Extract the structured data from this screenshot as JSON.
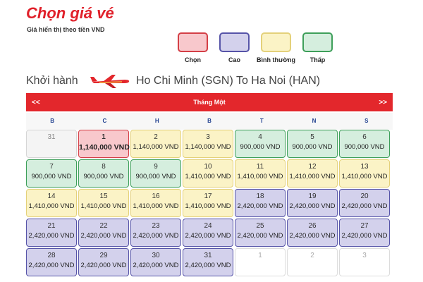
{
  "header": {
    "title": "Chọn giá vé",
    "subtitle": "Giá hiển thị theo tiền VND"
  },
  "legend": [
    {
      "label": "Chọn",
      "type": "selected"
    },
    {
      "label": "Cao",
      "type": "high"
    },
    {
      "label": "Bình thường",
      "type": "normal"
    },
    {
      "label": "Thấp",
      "type": "low"
    }
  ],
  "route": {
    "label": "Khởi hành",
    "text": "Ho Chi Minh (SGN) To Ha Noi (HAN)",
    "icon": "airplane-icon"
  },
  "calendar": {
    "prev": "<<",
    "next": ">>",
    "month": "Tháng Một",
    "weekdays": [
      "B",
      "C",
      "H",
      "B",
      "T",
      "N",
      "S"
    ],
    "cells": [
      {
        "day": "31",
        "price": "",
        "type": "muted"
      },
      {
        "day": "1",
        "price": "1,140,000 VND",
        "type": "selected"
      },
      {
        "day": "2",
        "price": "1,140,000 VND",
        "type": "normal"
      },
      {
        "day": "3",
        "price": "1,140,000 VND",
        "type": "normal"
      },
      {
        "day": "4",
        "price": "900,000 VND",
        "type": "low"
      },
      {
        "day": "5",
        "price": "900,000 VND",
        "type": "low"
      },
      {
        "day": "6",
        "price": "900,000 VND",
        "type": "low"
      },
      {
        "day": "7",
        "price": "900,000 VND",
        "type": "low"
      },
      {
        "day": "8",
        "price": "900,000 VND",
        "type": "low"
      },
      {
        "day": "9",
        "price": "900,000 VND",
        "type": "low"
      },
      {
        "day": "10",
        "price": "1,410,000 VND",
        "type": "normal"
      },
      {
        "day": "11",
        "price": "1,410,000 VND",
        "type": "normal"
      },
      {
        "day": "12",
        "price": "1,410,000 VND",
        "type": "normal"
      },
      {
        "day": "13",
        "price": "1,410,000 VND",
        "type": "normal"
      },
      {
        "day": "14",
        "price": "1,410,000 VND",
        "type": "normal"
      },
      {
        "day": "15",
        "price": "1,410,000 VND",
        "type": "normal"
      },
      {
        "day": "16",
        "price": "1,410,000 VND",
        "type": "normal"
      },
      {
        "day": "17",
        "price": "1,410,000 VND",
        "type": "normal"
      },
      {
        "day": "18",
        "price": "2,420,000 VND",
        "type": "high"
      },
      {
        "day": "19",
        "price": "2,420,000 VND",
        "type": "high"
      },
      {
        "day": "20",
        "price": "2,420,000 VND",
        "type": "high"
      },
      {
        "day": "21",
        "price": "2,420,000 VND",
        "type": "high"
      },
      {
        "day": "22",
        "price": "2,420,000 VND",
        "type": "high"
      },
      {
        "day": "23",
        "price": "2,420,000 VND",
        "type": "high"
      },
      {
        "day": "24",
        "price": "2,420,000 VND",
        "type": "high"
      },
      {
        "day": "25",
        "price": "2,420,000 VND",
        "type": "high"
      },
      {
        "day": "26",
        "price": "2,420,000 VND",
        "type": "high"
      },
      {
        "day": "27",
        "price": "2,420,000 VND",
        "type": "high"
      },
      {
        "day": "28",
        "price": "2,420,000 VND",
        "type": "high"
      },
      {
        "day": "29",
        "price": "2,420,000 VND",
        "type": "high"
      },
      {
        "day": "30",
        "price": "2,420,000 VND",
        "type": "high"
      },
      {
        "day": "31",
        "price": "2,420,000 VND",
        "type": "high"
      },
      {
        "day": "1",
        "price": "",
        "type": "empty"
      },
      {
        "day": "2",
        "price": "",
        "type": "empty"
      },
      {
        "day": "3",
        "price": "",
        "type": "empty"
      }
    ]
  },
  "colors": {
    "brand": "#e3272c",
    "selected": "#f8c8cc",
    "high": "#d3d1ec",
    "normal": "#fbf3c6",
    "low": "#d5eede"
  }
}
